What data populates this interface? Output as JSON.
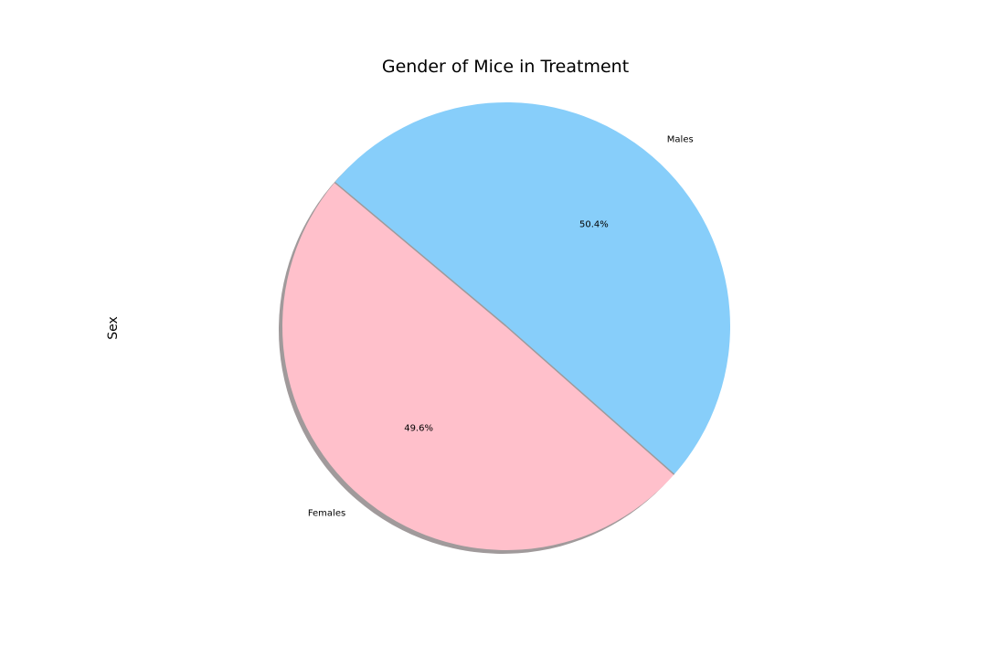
{
  "chart_data": {
    "type": "pie",
    "title": "Gender of Mice in Treatment",
    "ylabel": "Sex",
    "categories": [
      "Females",
      "Males"
    ],
    "values": [
      49.6,
      50.4
    ],
    "autopct_labels": [
      "49.6%",
      "50.4%"
    ],
    "colors": [
      "#ffc0cb",
      "#87cefa"
    ],
    "start_angle_deg": 140,
    "shadow": true,
    "legend": "none"
  }
}
